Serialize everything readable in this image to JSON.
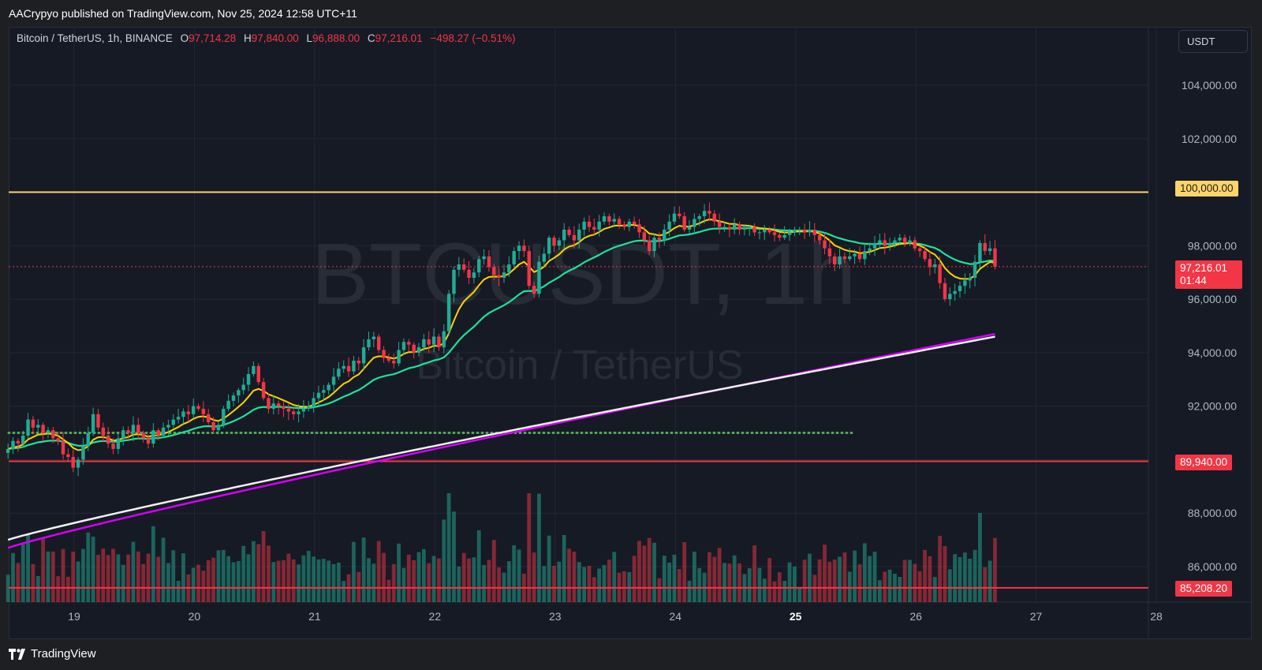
{
  "header": {
    "publisher_line": "AACrypyo published on TradingView.com, Nov 25, 2024 12:58 UTC+11"
  },
  "legend": {
    "symbol": "Bitcoin / TetherUS, 1h, BINANCE",
    "open_label": "O",
    "open": "97,714.28",
    "high_label": "H",
    "high": "97,840.00",
    "low_label": "L",
    "low": "96,888.00",
    "close_label": "C",
    "close": "97,216.01",
    "change": "−498.27 (−0.51%)"
  },
  "currency": "USDT",
  "watermark": {
    "ticker": "BTCUSDT, 1h",
    "name": "Bitcoin / TetherUS"
  },
  "price_tags": {
    "resistance": "100,000.00",
    "support_1": "89,940.00",
    "support_2": "85,208.20",
    "last_price": "97,216.01",
    "countdown": "01:44"
  },
  "footer": {
    "brand": "TradingView"
  },
  "colors": {
    "up": "#22ab94",
    "down": "#f23645",
    "ema_fast": "#fbd300",
    "ema_mid": "#1de39a",
    "ma_white": "#f0f0f0",
    "ma_magenta": "#d500f9",
    "resistance": "#fdd36a",
    "support": "#f23645",
    "dotted_level": "#4caf50"
  },
  "chart_data": {
    "type": "candlestick",
    "title": "Bitcoin / TetherUS, 1h, BINANCE",
    "xlabel": "",
    "ylabel": "",
    "x_ticks": [
      "19",
      "20",
      "21",
      "22",
      "23",
      "24",
      "25",
      "26",
      "27",
      "28"
    ],
    "y_ticks": [
      "86,000.00",
      "88,000.00",
      "92,000.00",
      "94,000.00",
      "96,000.00",
      "98,000.00",
      "102,000.00",
      "104,000.00"
    ],
    "ylim": [
      84200,
      105800
    ],
    "x_range_days": [
      18.45,
      28.2
    ],
    "grid": true,
    "horizontal_levels": [
      {
        "value": 100000,
        "style": "solid",
        "color": "yellow"
      },
      {
        "value": 89940,
        "style": "solid",
        "color": "red"
      },
      {
        "value": 85208.2,
        "style": "solid",
        "color": "red"
      },
      {
        "value": 91000,
        "style": "dotted",
        "color": "green"
      }
    ],
    "close_series": {
      "x_start": 18.45,
      "x_step_hours": 1,
      "closes": [
        90400,
        90700,
        90600,
        90900,
        91500,
        91200,
        91300,
        91000,
        91100,
        90800,
        90700,
        90200,
        90100,
        89700,
        90000,
        90500,
        91000,
        91700,
        91200,
        90900,
        90600,
        90400,
        90800,
        91100,
        91000,
        91300,
        91000,
        90800,
        90600,
        91100,
        90900,
        91200,
        91300,
        91500,
        91600,
        91800,
        91700,
        92000,
        91900,
        91700,
        91400,
        91100,
        91300,
        91900,
        92200,
        92400,
        92600,
        92800,
        93200,
        93500,
        92900,
        92300,
        91900,
        92100,
        92000,
        91900,
        91800,
        91700,
        91800,
        91900,
        92000,
        92300,
        92500,
        92600,
        92800,
        93100,
        93400,
        93500,
        93300,
        93700,
        93600,
        94200,
        94500,
        94600,
        94100,
        93800,
        93700,
        93600,
        94100,
        94400,
        94300,
        94000,
        94200,
        94500,
        94300,
        94600,
        94200,
        94800,
        96200,
        97100,
        97300,
        97100,
        96800,
        97000,
        97500,
        97600,
        97200,
        96900,
        96800,
        97000,
        97300,
        97800,
        98000,
        97800,
        96500,
        96200,
        97400,
        97700,
        98300,
        98000,
        98200,
        98600,
        98400,
        98200,
        98600,
        98900,
        98700,
        98600,
        98900,
        99100,
        98900,
        99000,
        98800,
        98700,
        98900,
        98800,
        98500,
        98200,
        97800,
        98300,
        98200,
        98600,
        98900,
        99200,
        99100,
        98600,
        98700,
        99000,
        99100,
        99300,
        99200,
        98900,
        98700,
        98700,
        98600,
        98800,
        98600,
        98700,
        98700,
        98500,
        98500,
        98600,
        98500,
        98400,
        98300,
        98400,
        98500,
        98600,
        98600,
        98500,
        98600,
        98400,
        98200,
        97900,
        97600,
        97300,
        97600,
        97500,
        97600,
        97700,
        97500,
        97800,
        97900,
        98100,
        98200,
        98000,
        98100,
        98200,
        98300,
        98100,
        98200,
        97900,
        97800,
        97500,
        97200,
        97300,
        96600,
        96000,
        96200,
        96300,
        96500,
        96700,
        96800,
        97400,
        98100,
        97800,
        97900,
        97216
      ]
    },
    "moving_averages": [
      {
        "type": "EMA fast",
        "color": "yellow",
        "end_value": 97300
      },
      {
        "type": "EMA mid",
        "color": "green",
        "end_value": 97500
      },
      {
        "type": "MA long",
        "color": "white",
        "start_value": 87000,
        "end_value": 94600
      },
      {
        "type": "MA long 2",
        "color": "magenta",
        "start_value": 86700,
        "end_value": 94700
      }
    ],
    "volume": {
      "shown": true,
      "note": "volume histogram along bottom of pane, colored by candle direction"
    }
  }
}
